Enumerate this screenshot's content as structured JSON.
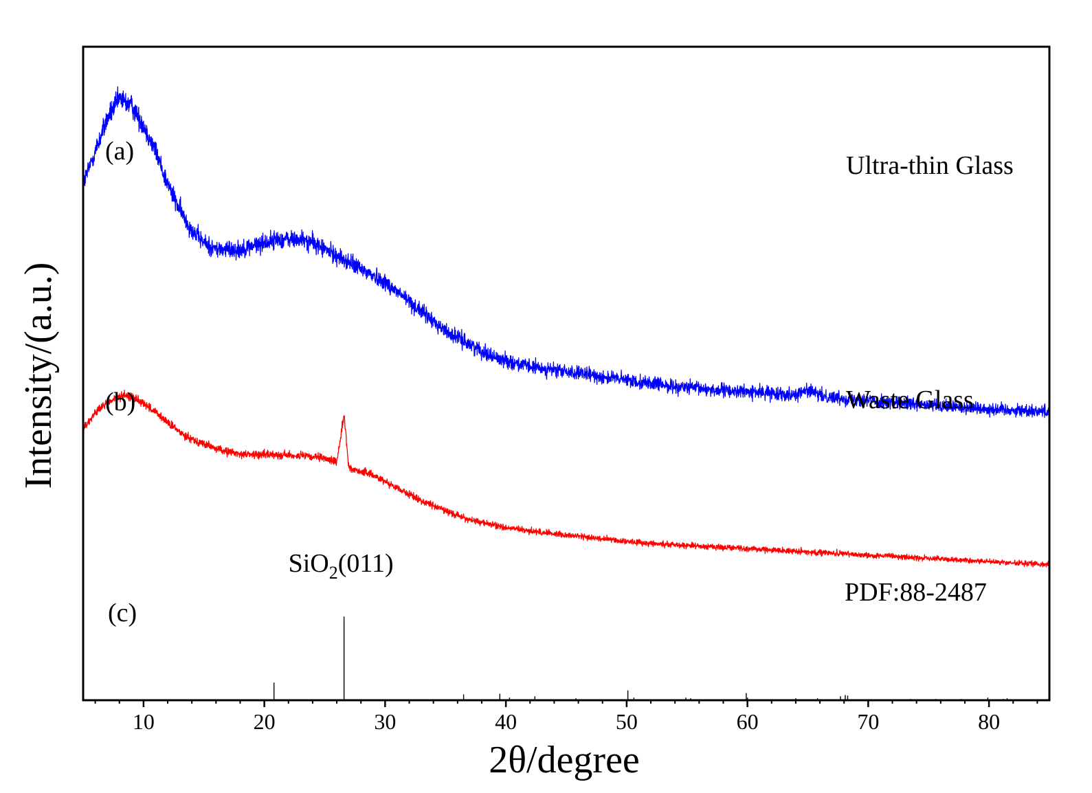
{
  "chart_data": {
    "type": "line",
    "xlabel": "2θ/degree",
    "ylabel": "Intensity/(a.u.)",
    "xlim": [
      5,
      85
    ],
    "x_ticks": [
      10,
      20,
      30,
      40,
      50,
      60,
      70,
      80
    ],
    "x_minor_step": 2,
    "y_ticks": "none",
    "grid": false,
    "series": [
      {
        "name": "Ultra-thin Glass",
        "tag": "(a)",
        "color": "#0000ff",
        "style": "noisy line",
        "x": [
          5,
          6,
          7,
          8,
          9,
          10,
          11,
          12,
          13,
          14,
          15,
          16,
          17,
          18,
          19,
          20,
          21,
          22,
          23,
          24,
          25,
          26,
          27,
          28,
          29,
          30,
          31,
          32,
          33,
          34,
          35,
          36,
          37,
          38,
          39,
          40,
          42,
          44,
          46,
          48,
          50,
          52,
          54,
          56,
          58,
          60,
          62,
          64,
          65,
          66,
          68,
          70,
          72,
          74,
          76,
          78,
          80,
          82,
          85
        ],
        "y": [
          0.79,
          0.84,
          0.89,
          0.92,
          0.91,
          0.88,
          0.84,
          0.79,
          0.75,
          0.72,
          0.7,
          0.69,
          0.69,
          0.69,
          0.695,
          0.7,
          0.705,
          0.705,
          0.705,
          0.7,
          0.69,
          0.68,
          0.67,
          0.66,
          0.65,
          0.64,
          0.625,
          0.61,
          0.595,
          0.58,
          0.565,
          0.555,
          0.545,
          0.535,
          0.525,
          0.52,
          0.51,
          0.505,
          0.5,
          0.495,
          0.49,
          0.485,
          0.48,
          0.477,
          0.474,
          0.472,
          0.47,
          0.468,
          0.475,
          0.466,
          0.462,
          0.459,
          0.455,
          0.452,
          0.45,
          0.448,
          0.446,
          0.444,
          0.442
        ]
      },
      {
        "name": "Waste Glass",
        "tag": "(b)",
        "color": "#ff0000",
        "style": "noisy line",
        "x": [
          5,
          6,
          7,
          8,
          9,
          10,
          11,
          12,
          13,
          14,
          15,
          16,
          17,
          18,
          19,
          20,
          21,
          22,
          23,
          24,
          25,
          26,
          26.6,
          27,
          28,
          29,
          30,
          31,
          32,
          33,
          34,
          35,
          36,
          37,
          38,
          39,
          40,
          42,
          44,
          46,
          48,
          50,
          52,
          54,
          56,
          58,
          60,
          62,
          64,
          66,
          68,
          70,
          72,
          74,
          76,
          78,
          80,
          82,
          85
        ],
        "y": [
          0.415,
          0.44,
          0.455,
          0.465,
          0.465,
          0.455,
          0.44,
          0.425,
          0.41,
          0.4,
          0.392,
          0.385,
          0.38,
          0.377,
          0.376,
          0.376,
          0.376,
          0.375,
          0.374,
          0.372,
          0.37,
          0.365,
          0.437,
          0.355,
          0.35,
          0.345,
          0.335,
          0.325,
          0.315,
          0.305,
          0.298,
          0.29,
          0.283,
          0.276,
          0.272,
          0.268,
          0.264,
          0.259,
          0.255,
          0.251,
          0.247,
          0.243,
          0.24,
          0.238,
          0.236,
          0.234,
          0.232,
          0.23,
          0.228,
          0.226,
          0.224,
          0.222,
          0.22,
          0.218,
          0.216,
          0.214,
          0.212,
          0.21,
          0.208
        ]
      },
      {
        "name": "PDF:88-2487",
        "tag": "(c)",
        "color": "#000000",
        "style": "stick pattern",
        "x": [
          20.8,
          26.6,
          36.5,
          39.5,
          40.3,
          42.4,
          45.8,
          50.1,
          50.6,
          54.9,
          55.3,
          59.9,
          60.0,
          64.0,
          65.8,
          67.7,
          68.1,
          68.3,
          73.5,
          75.6,
          77.7,
          79.9,
          81.2,
          81.5
        ],
        "y": [
          0.027,
          0.128,
          0.009,
          0.01,
          0.004,
          0.006,
          0.003,
          0.015,
          0.004,
          0.004,
          0.003,
          0.011,
          0.004,
          0.003,
          0.003,
          0.006,
          0.008,
          0.007,
          0.002,
          0.002,
          0.002,
          0.004,
          0.002,
          0.003
        ]
      }
    ],
    "annotations": [
      {
        "text": "SiO",
        "sub": "2",
        "suffix": "(011)",
        "x": 26.6
      }
    ]
  }
}
